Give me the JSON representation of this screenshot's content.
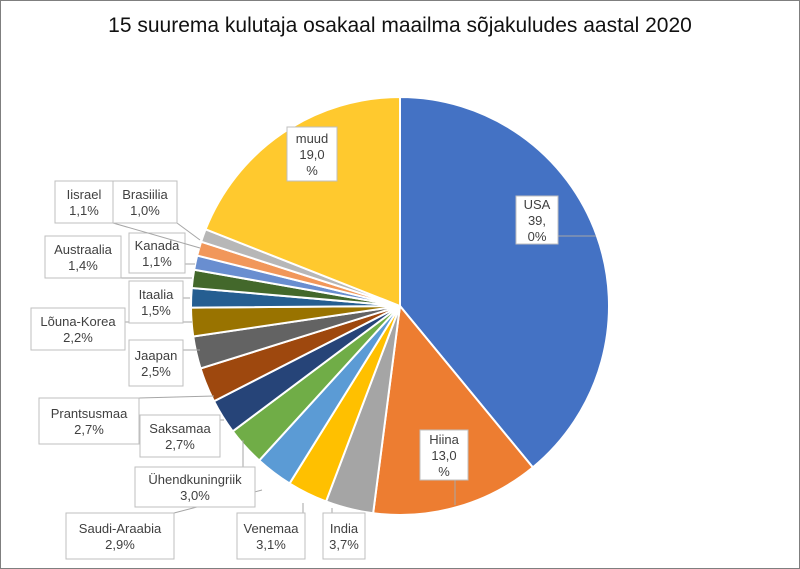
{
  "chart_data": {
    "type": "pie",
    "title": "15 suurema kulutaja osakaal maailma sõjakuludes aastal 2020",
    "slices": [
      {
        "label": "USA",
        "value_text": "39,\n0%",
        "value": 39.0,
        "color": "#4472C4"
      },
      {
        "label": "Hiina",
        "value_text": "13,0\n%",
        "value": 13.0,
        "color": "#ED7D31"
      },
      {
        "label": "India",
        "value_text": "3,7%",
        "value": 3.7,
        "color": "#A5A5A5"
      },
      {
        "label": "Venemaa",
        "value_text": "3,1%",
        "value": 3.1,
        "color": "#FFC000"
      },
      {
        "label": "Saudi-Araabia",
        "value_text": "2,9%",
        "value": 2.9,
        "color": "#5B9BD5"
      },
      {
        "label": "Ühendkuningriik",
        "value_text": "3,0%",
        "value": 3.0,
        "color": "#70AD47"
      },
      {
        "label": "Saksamaa",
        "value_text": "2,7%",
        "value": 2.7,
        "color": "#264478"
      },
      {
        "label": "Prantsusmaa",
        "value_text": "2,7%",
        "value": 2.7,
        "color": "#9E480E"
      },
      {
        "label": "Jaapan",
        "value_text": "2,5%",
        "value": 2.5,
        "color": "#636363"
      },
      {
        "label": "Lõuna-Korea",
        "value_text": "2,2%",
        "value": 2.2,
        "color": "#997300"
      },
      {
        "label": "Itaalia",
        "value_text": "1,5%",
        "value": 1.5,
        "color": "#255E91"
      },
      {
        "label": "Austraalia",
        "value_text": "1,4%",
        "value": 1.4,
        "color": "#43682B"
      },
      {
        "label": "Kanada",
        "value_text": "1,1%",
        "value": 1.1,
        "color": "#698ED0"
      },
      {
        "label": "Iisrael",
        "value_text": "1,1%",
        "value": 1.1,
        "color": "#F1975A"
      },
      {
        "label": "Brasiilia",
        "value_text": "1,0%",
        "value": 1.0,
        "color": "#B7B7B7"
      },
      {
        "label": "muud",
        "value_text": "19,0\n%",
        "value": 19.0,
        "color": "#FFC92E"
      }
    ]
  }
}
